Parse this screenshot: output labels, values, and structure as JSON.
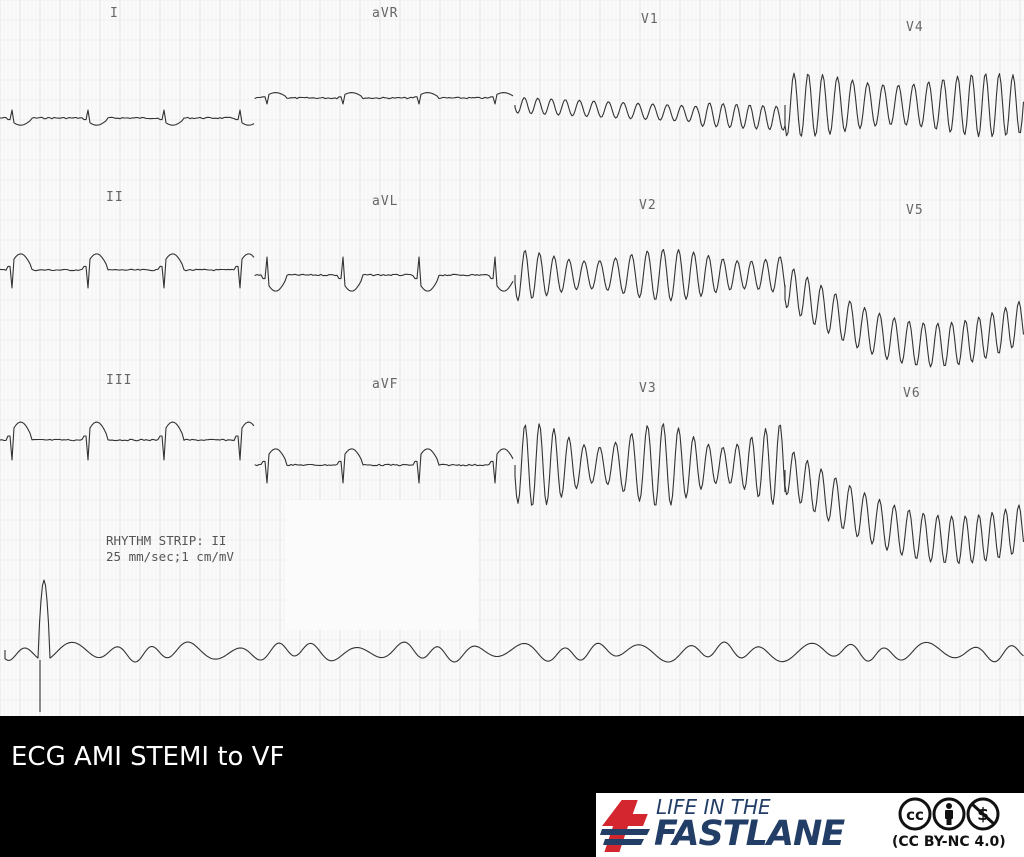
{
  "ecg": {
    "leads": {
      "I": "I",
      "II": "II",
      "III": "III",
      "aVR": "aVR",
      "aVL": "aVL",
      "aVF": "aVF",
      "V1": "V1",
      "V2": "V2",
      "V3": "V3",
      "V4": "V4",
      "V5": "V5",
      "V6": "V6"
    },
    "rhythm_strip_label": "RHYTHM STRIP: II",
    "speed_label": "25 mm/sec;1 cm/mV"
  },
  "caption": "ECG AMI STEMI to VF",
  "logo": {
    "line1": "LIFE IN THE",
    "line2": "FASTLANE",
    "license": "(CC BY-NC 4.0)",
    "colors": {
      "navy": "#233e66",
      "red": "#d3262f"
    },
    "icons": [
      "cc-icon",
      "attribution-icon",
      "noncommercial-icon"
    ]
  }
}
